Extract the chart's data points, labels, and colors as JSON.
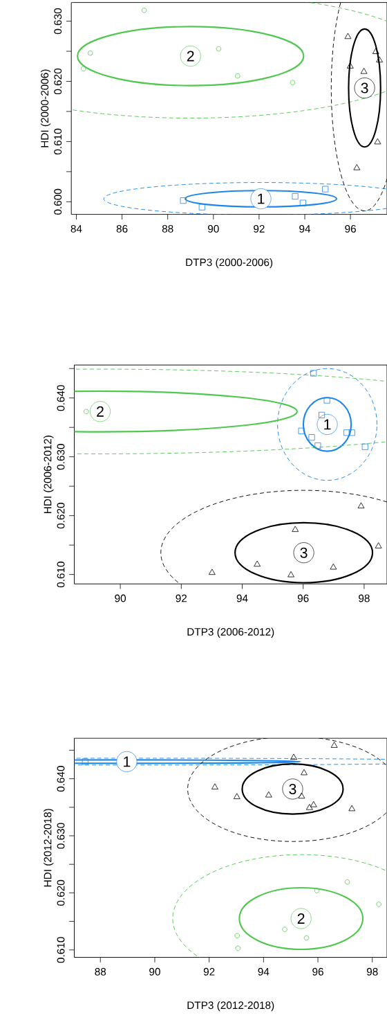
{
  "chart_data": [
    {
      "type": "scatter",
      "xlabel": "DTP3 (2000-2006)",
      "ylabel": "HDI (2000-2006)",
      "xlim": [
        83.78,
        97.6
      ],
      "ylim": [
        0.5979,
        0.6331
      ],
      "xticks": [
        84,
        86,
        88,
        90,
        92,
        94,
        96
      ],
      "yticks": [
        {
          "value": 0.6,
          "label": "0.600"
        },
        {
          "value": 0.605,
          "label": null
        },
        {
          "value": 0.61,
          "label": "0.610"
        },
        {
          "value": 0.615,
          "label": null
        },
        {
          "value": 0.62,
          "label": "0.620"
        },
        {
          "value": 0.625,
          "label": null
        },
        {
          "value": 0.63,
          "label": "0.630"
        }
      ],
      "series": [
        {
          "color": "#1c86ee",
          "marker": "square",
          "x": [
            88.68,
            89.5,
            93.58,
            93.92,
            94.9
          ],
          "values": [
            0.6002,
            0.5991,
            0.6009,
            0.5998,
            0.6021
          ]
        },
        {
          "color": "#50c850",
          "marker": "circle",
          "x": [
            86.97,
            84.61,
            84.31,
            90.23,
            91.06,
            93.47
          ],
          "values": [
            0.6318,
            0.6247,
            0.6221,
            0.6254,
            0.6209,
            0.6198
          ]
        },
        {
          "color": "#000000",
          "marker": "triangle",
          "x": [
            95.89,
            95.99,
            96.59,
            97.11,
            97.27,
            97.19,
            96.28
          ],
          "values": [
            0.6274,
            0.6225,
            0.6216,
            0.6249,
            0.6235,
            0.6099,
            0.6056
          ]
        }
      ],
      "annotations": [
        {
          "text": "1",
          "x": 92.08,
          "y": 0.6005
        },
        {
          "text": "2",
          "x": 89.0,
          "y": 0.6242
        },
        {
          "text": "3",
          "x": 96.62,
          "y": 0.6189
        }
      ]
    },
    {
      "type": "scatter",
      "xlabel": "DTP3 (2006-2012)",
      "ylabel": "HDI (2006-2012)",
      "xlim": [
        88.49,
        98.75
      ],
      "ylim": [
        0.6084,
        0.6456
      ],
      "xticks": [
        90,
        92,
        94,
        96,
        98
      ],
      "yticks": [
        {
          "value": 0.61,
          "label": "0.610"
        },
        {
          "value": 0.615,
          "label": null
        },
        {
          "value": 0.62,
          "label": "0.620"
        },
        {
          "value": 0.625,
          "label": null
        },
        {
          "value": 0.63,
          "label": "0.630"
        },
        {
          "value": 0.635,
          "label": null
        },
        {
          "value": 0.64,
          "label": "0.640"
        },
        {
          "value": 0.645,
          "label": null
        }
      ],
      "series": [
        {
          "color": "#1c86ee",
          "marker": "square",
          "x": [
            96.34,
            96.78,
            96.61,
            95.94,
            96.28,
            96.48,
            97.43,
            97.6,
            98.03
          ],
          "values": [
            0.6442,
            0.6396,
            0.6371,
            0.6344,
            0.6333,
            0.6319,
            0.6341,
            0.6341,
            0.6317
          ]
        },
        {
          "color": "#50c850",
          "marker": "circle",
          "x": [
            88.88
          ],
          "values": [
            0.6377
          ]
        },
        {
          "color": "#000000",
          "marker": "triangle",
          "x": [
            97.9,
            95.74,
            98.47,
            94.49,
            96.99,
            93.01,
            95.6
          ],
          "values": [
            0.6216,
            0.6176,
            0.6148,
            0.6117,
            0.6112,
            0.6103,
            0.6099
          ]
        }
      ],
      "annotations": [
        {
          "text": "1",
          "x": 96.79,
          "y": 0.6355
        },
        {
          "text": "2",
          "x": 89.34,
          "y": 0.6377
        },
        {
          "text": "3",
          "x": 96.02,
          "y": 0.6137
        }
      ]
    },
    {
      "type": "scatter",
      "xlabel": "DTP3 (2012-2018)",
      "ylabel": "HDI (2012-2018)",
      "xlim": [
        87.04,
        98.54
      ],
      "ylim": [
        0.6087,
        0.6471
      ],
      "xticks": [
        88,
        90,
        92,
        94,
        96,
        98
      ],
      "yticks": [
        {
          "value": 0.61,
          "label": "0.610"
        },
        {
          "value": 0.615,
          "label": null
        },
        {
          "value": 0.62,
          "label": "0.620"
        },
        {
          "value": 0.625,
          "label": null
        },
        {
          "value": 0.63,
          "label": "0.630"
        },
        {
          "value": 0.635,
          "label": null
        },
        {
          "value": 0.64,
          "label": "0.640"
        },
        {
          "value": 0.645,
          "label": null
        }
      ],
      "series": [
        {
          "color": "#1c86ee",
          "marker": "square",
          "x": [
            87.44
          ],
          "values": [
            0.643
          ]
        },
        {
          "color": "#50c850",
          "marker": "circle",
          "x": [
            97.08,
            95.96,
            98.24,
            94.78,
            93.03,
            95.58,
            93.06
          ],
          "values": [
            0.6219,
            0.6204,
            0.618,
            0.6136,
            0.6125,
            0.6121,
            0.6103
          ]
        },
        {
          "color": "#000000",
          "marker": "triangle",
          "x": [
            96.6,
            95.11,
            95.49,
            92.21,
            93.02,
            94.19,
            95.4,
            95.69,
            95.84,
            97.25
          ],
          "values": [
            0.6458,
            0.6437,
            0.641,
            0.6385,
            0.6368,
            0.6371,
            0.6369,
            0.6349,
            0.6354,
            0.6347
          ]
        }
      ],
      "annotations": [
        {
          "text": "1",
          "x": 88.97,
          "y": 0.643
        },
        {
          "text": "2",
          "x": 95.38,
          "y": 0.6155
        },
        {
          "text": "3",
          "x": 95.07,
          "y": 0.6382
        }
      ]
    }
  ]
}
